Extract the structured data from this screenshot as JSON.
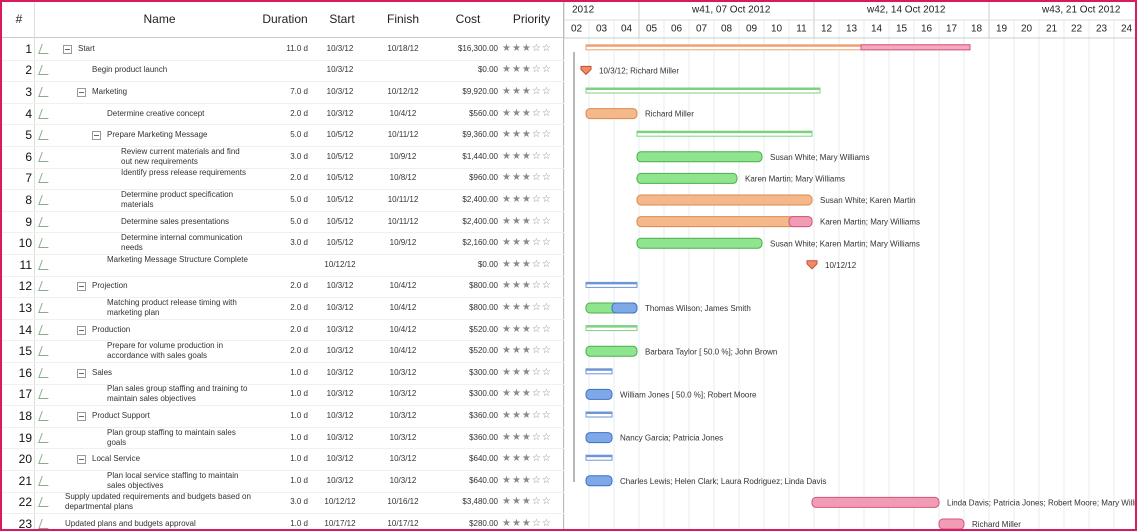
{
  "table": {
    "columns": [
      "#",
      "Name",
      "Duration",
      "Start",
      "Finish",
      "Cost",
      "Priority"
    ],
    "rows": [
      {
        "num": "1",
        "name": "Start",
        "duration": "11.0 d",
        "start": "10/3/12",
        "finish": "10/18/12",
        "cost": "$16,300.00",
        "priority": "★★★☆☆"
      },
      {
        "num": "2",
        "name": "Begin product launch",
        "start": "10/3/12",
        "cost": "$0.00",
        "priority": "★★★☆☆",
        "resources": "10/3/12; Richard Miller"
      },
      {
        "num": "3",
        "name": "Marketing",
        "duration": "7.0 d",
        "start": "10/3/12",
        "finish": "10/12/12",
        "cost": "$9,920.00",
        "priority": "★★★☆☆"
      },
      {
        "num": "4",
        "name": "Determine creative concept",
        "duration": "2.0 d",
        "start": "10/3/12",
        "finish": "10/4/12",
        "cost": "$560.00",
        "priority": "★★★☆☆",
        "resources": "Richard Miller"
      },
      {
        "num": "5",
        "name": "Prepare Marketing Message",
        "duration": "5.0 d",
        "start": "10/5/12",
        "finish": "10/11/12",
        "cost": "$9,360.00",
        "priority": "★★★☆☆"
      },
      {
        "num": "6",
        "name": "Review current materials and find out new requirements",
        "duration": "3.0 d",
        "start": "10/5/12",
        "finish": "10/9/12",
        "cost": "$1,440.00",
        "priority": "★★★☆☆",
        "resources": "Susan White; Mary Williams"
      },
      {
        "num": "7",
        "name": "Identify press release requirements",
        "duration": "2.0 d",
        "start": "10/5/12",
        "finish": "10/8/12",
        "cost": "$960.00",
        "priority": "★★★☆☆",
        "resources": "Karen Martin; Mary Williams"
      },
      {
        "num": "8",
        "name": "Determine product specification materials",
        "duration": "5.0 d",
        "start": "10/5/12",
        "finish": "10/11/12",
        "cost": "$2,400.00",
        "priority": "★★★☆☆",
        "resources": "Susan White; Karen Martin"
      },
      {
        "num": "9",
        "name": "Determine sales presentations",
        "duration": "5.0 d",
        "start": "10/5/12",
        "finish": "10/11/12",
        "cost": "$2,400.00",
        "priority": "★★★☆☆",
        "resources": "Karen Martin; Mary Williams"
      },
      {
        "num": "10",
        "name": "Determine internal communication needs",
        "duration": "3.0 d",
        "start": "10/5/12",
        "finish": "10/9/12",
        "cost": "$2,160.00",
        "priority": "★★★☆☆",
        "resources": "Susan White; Karen Martin; Mary Williams"
      },
      {
        "num": "11",
        "name": "Marketing Message Structure Complete",
        "start": "10/12/12",
        "cost": "$0.00",
        "priority": "★★★☆☆",
        "resources": "10/12/12"
      },
      {
        "num": "12",
        "name": "Projection",
        "duration": "2.0 d",
        "start": "10/3/12",
        "finish": "10/4/12",
        "cost": "$800.00",
        "priority": "★★★☆☆"
      },
      {
        "num": "13",
        "name": "Matching product release timing with marketing plan",
        "duration": "2.0 d",
        "start": "10/3/12",
        "finish": "10/4/12",
        "cost": "$800.00",
        "priority": "★★★☆☆",
        "resources": "Thomas Wilson; James Smith"
      },
      {
        "num": "14",
        "name": "Production",
        "duration": "2.0 d",
        "start": "10/3/12",
        "finish": "10/4/12",
        "cost": "$520.00",
        "priority": "★★★☆☆"
      },
      {
        "num": "15",
        "name": "Prepare for volume production in accordance with sales goals",
        "duration": "2.0 d",
        "start": "10/3/12",
        "finish": "10/4/12",
        "cost": "$520.00",
        "priority": "★★★☆☆",
        "resources": "Barbara Taylor [ 50.0 %]; John Brown"
      },
      {
        "num": "16",
        "name": "Sales",
        "duration": "1.0 d",
        "start": "10/3/12",
        "finish": "10/3/12",
        "cost": "$300.00",
        "priority": "★★★☆☆"
      },
      {
        "num": "17",
        "name": "Plan sales group staffing and training to maintain sales objectives",
        "duration": "1.0 d",
        "start": "10/3/12",
        "finish": "10/3/12",
        "cost": "$300.00",
        "priority": "★★★☆☆",
        "resources": "William Jones [ 50.0 %]; Robert Moore"
      },
      {
        "num": "18",
        "name": "Product Support",
        "duration": "1.0 d",
        "start": "10/3/12",
        "finish": "10/3/12",
        "cost": "$360.00",
        "priority": "★★★☆☆"
      },
      {
        "num": "19",
        "name": "Plan group staffing to maintain sales goals",
        "duration": "1.0 d",
        "start": "10/3/12",
        "finish": "10/3/12",
        "cost": "$360.00",
        "priority": "★★★☆☆",
        "resources": "Nancy Garcia; Patricia Jones"
      },
      {
        "num": "20",
        "name": "Local Service",
        "duration": "1.0 d",
        "start": "10/3/12",
        "finish": "10/3/12",
        "cost": "$640.00",
        "priority": "★★★☆☆"
      },
      {
        "num": "21",
        "name": "Plan local service staffing to maintain sales objectives",
        "duration": "1.0 d",
        "start": "10/3/12",
        "finish": "10/3/12",
        "cost": "$640.00",
        "priority": "★★★☆☆",
        "resources": "Charles Lewis; Helen Clark; Laura Rodriguez; Linda Davis"
      },
      {
        "num": "22",
        "name": "Supply updated requirements and budgets based on departmental plans",
        "duration": "3.0 d",
        "start": "10/12/12",
        "finish": "10/16/12",
        "cost": "$3,480.00",
        "priority": "★★★☆☆",
        "resources": "Linda Davis; Patricia Jones; Robert Moore; Mary Williams"
      },
      {
        "num": "23",
        "name": "Updated plans and budgets approval",
        "duration": "1.0 d",
        "start": "10/17/12",
        "finish": "10/17/12",
        "cost": "$280.00",
        "priority": "★★★☆☆",
        "resources": "Richard Miller"
      }
    ]
  },
  "timeline": {
    "weeks": [
      "2012",
      "w41, 07 Oct 2012",
      "w42, 14 Oct 2012",
      "w43, 21 Oct 2012"
    ],
    "days": [
      "02",
      "03",
      "04",
      "05",
      "06",
      "07",
      "08",
      "09",
      "10",
      "11",
      "12",
      "13",
      "14",
      "15",
      "16",
      "17",
      "18",
      "19",
      "20",
      "21",
      "22",
      "23",
      "24"
    ]
  }
}
